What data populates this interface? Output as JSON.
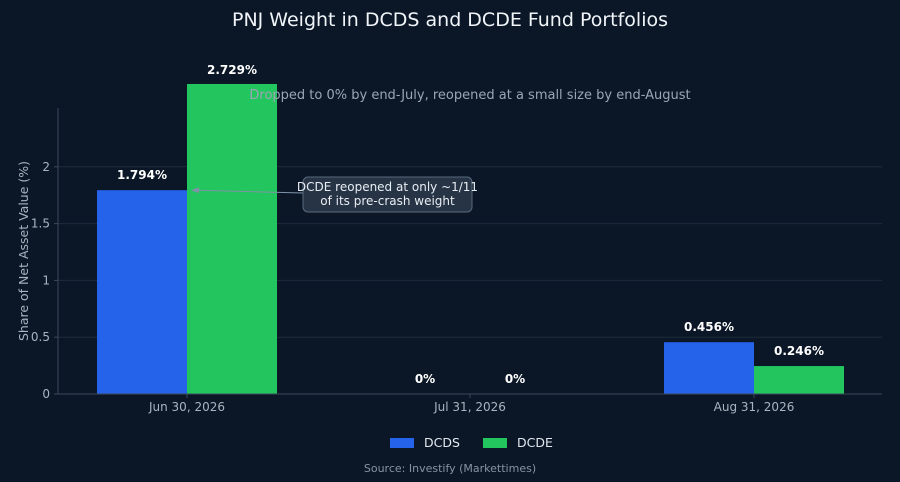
{
  "chart_data": {
    "type": "bar",
    "title": "PNJ Weight in DCDS and DCDE Fund Portfolios",
    "subtitle": "Dropped to 0% by end-July, reopened at a small size by end-August",
    "xlabel": "",
    "ylabel": "Share of Net Asset Value (%)",
    "categories": [
      "Jun 30, 2026",
      "Jul 31, 2026",
      "Aug 31, 2026"
    ],
    "series": [
      {
        "name": "DCDS",
        "values": [
          1.794,
          0,
          0.456
        ],
        "labels": [
          "1.794%",
          "0%",
          "0.456%"
        ],
        "color": "#2563eb"
      },
      {
        "name": "DCDE",
        "values": [
          2.729,
          0,
          0.246
        ],
        "labels": [
          "2.729%",
          "0%",
          "0.246%"
        ],
        "color": "#22c55e"
      }
    ],
    "ylim": [
      0,
      2.5
    ],
    "yticks": [
      0,
      0.5,
      1,
      1.5,
      2
    ],
    "ytick_labels": [
      "0",
      "0.5",
      "1",
      "1.5",
      "2"
    ],
    "grid": true,
    "legend_position": "bottom-center",
    "annotation": {
      "lines": [
        "DCDE reopened at only ~1/11",
        "of its pre-crash weight"
      ],
      "target_category": "Jun 30, 2026",
      "target_series": "DCDS"
    },
    "source": "Source: Investify (Markettimes)"
  },
  "colors": {
    "background": "#0b1726",
    "grid": "#1c2b3c",
    "axis": "#3b4a5c"
  }
}
